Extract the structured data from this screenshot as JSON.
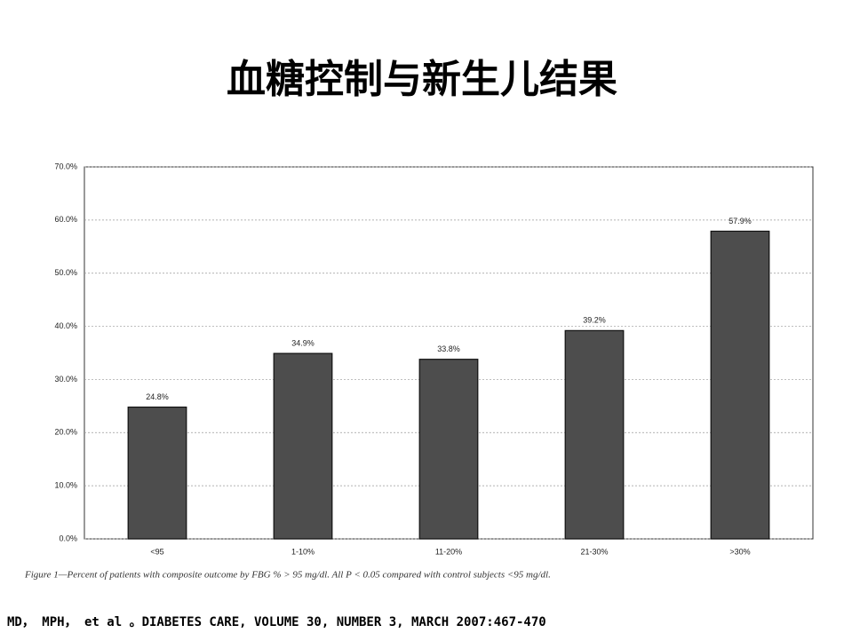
{
  "chart_data": {
    "type": "bar",
    "title": "血糖控制与新生儿结果",
    "categories": [
      "<95",
      "1-10%",
      "11-20%",
      "21-30%",
      ">30%"
    ],
    "values": [
      24.8,
      34.9,
      33.8,
      39.2,
      57.9
    ],
    "value_labels": [
      "24.8%",
      "34.9%",
      "33.8%",
      "39.2%",
      "57.9%"
    ],
    "color": "#4d4d4d",
    "ylim": [
      0,
      70
    ],
    "yticks": [
      {
        "value": 0,
        "label": "0.0%"
      },
      {
        "value": 10,
        "label": "10.0%"
      },
      {
        "value": 20,
        "label": "20.0%"
      },
      {
        "value": 30,
        "label": "30.0%"
      },
      {
        "value": 40,
        "label": "40.0%"
      },
      {
        "value": 50,
        "label": "50.0%"
      },
      {
        "value": 60,
        "label": "60.0%"
      },
      {
        "value": 70,
        "label": "70.0%"
      }
    ],
    "grid": true,
    "caption": "Figure 1—Percent of patients with composite outcome by FBG % > 95 mg/dl. All P < 0.05 compared with control subjects <95 mg/dl.",
    "source": "MD， MPH， et al 。DIABETES CARE, VOLUME 30, NUMBER 3, MARCH 2007:467-470"
  }
}
